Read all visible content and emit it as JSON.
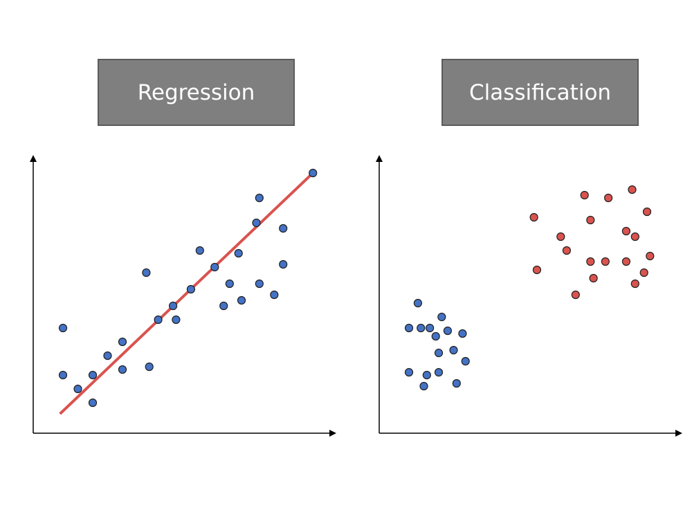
{
  "panels": {
    "regression": {
      "title": "Regression"
    },
    "classification": {
      "title": "Classification"
    }
  },
  "colors": {
    "blue_point": "#4472c4",
    "red_point": "#d9534f",
    "regression_line": "#d9534f",
    "point_outline": "#1f1f1f",
    "title_box": "#7f7f7f"
  },
  "chart_data": [
    {
      "type": "scatter",
      "panel": "regression",
      "xlim": [
        0,
        100
      ],
      "ylim": [
        0,
        100
      ],
      "series": [
        {
          "color": "blue",
          "points": [
            [
              10,
              37
            ],
            [
              10,
              20
            ],
            [
              15,
              15
            ],
            [
              20,
              20
            ],
            [
              20,
              10
            ],
            [
              25,
              27
            ],
            [
              30,
              22
            ],
            [
              30,
              32
            ],
            [
              39,
              23
            ],
            [
              38,
              57
            ],
            [
              42,
              40
            ],
            [
              47,
              45
            ],
            [
              48,
              40
            ],
            [
              53,
              51
            ],
            [
              56,
              65
            ],
            [
              61,
              59
            ],
            [
              64,
              45
            ],
            [
              66,
              53
            ],
            [
              69,
              64
            ],
            [
              70,
              47
            ],
            [
              75,
              75
            ],
            [
              76,
              53
            ],
            [
              76,
              84
            ],
            [
              81,
              49
            ],
            [
              84,
              60
            ],
            [
              84,
              73
            ],
            [
              94,
              93
            ]
          ]
        }
      ],
      "fit_line": [
        [
          9,
          6
        ],
        [
          94,
          93
        ]
      ]
    },
    {
      "type": "scatter",
      "panel": "classification",
      "xlim": [
        0,
        100
      ],
      "ylim": [
        0,
        100
      ],
      "series": [
        {
          "color": "blue",
          "points": [
            [
              13,
              46
            ],
            [
              21,
              41
            ],
            [
              17,
              37
            ],
            [
              10,
              37
            ],
            [
              14,
              37
            ],
            [
              19,
              34
            ],
            [
              23,
              36
            ],
            [
              28,
              35
            ],
            [
              25,
              29
            ],
            [
              20,
              28
            ],
            [
              29,
              25
            ],
            [
              16,
              20
            ],
            [
              10,
              21
            ],
            [
              20,
              21
            ],
            [
              26,
              17
            ],
            [
              15,
              16
            ]
          ]
        },
        {
          "color": "red",
          "points": [
            [
              52,
              77
            ],
            [
              53,
              58
            ],
            [
              61,
              70
            ],
            [
              63,
              65
            ],
            [
              66,
              49
            ],
            [
              69,
              85
            ],
            [
              71,
              61
            ],
            [
              71,
              76
            ],
            [
              72,
              55
            ],
            [
              77,
              84
            ],
            [
              76,
              61
            ],
            [
              83,
              72
            ],
            [
              83,
              61
            ],
            [
              85,
              87
            ],
            [
              86,
              53
            ],
            [
              86,
              70
            ],
            [
              89,
              57
            ],
            [
              90,
              79
            ],
            [
              91,
              63
            ]
          ]
        }
      ]
    }
  ]
}
